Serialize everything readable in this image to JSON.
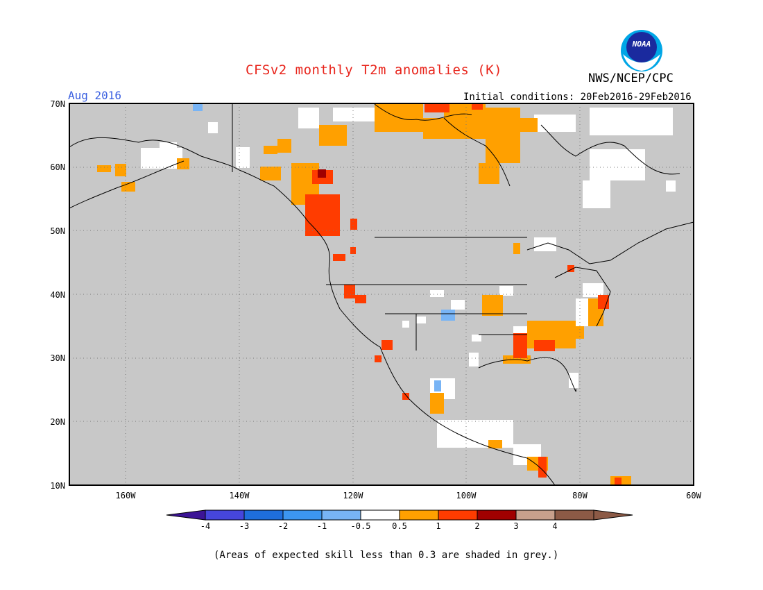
{
  "header": {
    "title": "CFSv2 monthly T2m anomalies (K)",
    "org": "NWS/NCEP/CPC",
    "month": "Aug 2016",
    "initial_conditions": "Initial conditions: 20Feb2016-29Feb2016",
    "logo_text": "NOAA"
  },
  "map": {
    "lat_labels": [
      "70N",
      "60N",
      "50N",
      "40N",
      "30N",
      "20N",
      "10N"
    ],
    "lon_labels": [
      "160W",
      "140W",
      "120W",
      "100W",
      "80W",
      "60W"
    ],
    "background_color": "#c8c8c8",
    "no_signal_color": "#ffffff"
  },
  "colorbar": {
    "labels": [
      "-4",
      "-3",
      "-2",
      "-1",
      "-0.5",
      "0.5",
      "1",
      "2",
      "3",
      "4"
    ],
    "colors": [
      "#3c1496",
      "#4646dc",
      "#1e6edc",
      "#3c96f0",
      "#78b4f5",
      "#ffffff",
      "#ffa000",
      "#ff3c00",
      "#a00000",
      "#c8a08c",
      "#8c5a46",
      "#281e96"
    ]
  },
  "footnote": "(Areas of expected skill less than 0.3 are shaded in grey.)"
}
